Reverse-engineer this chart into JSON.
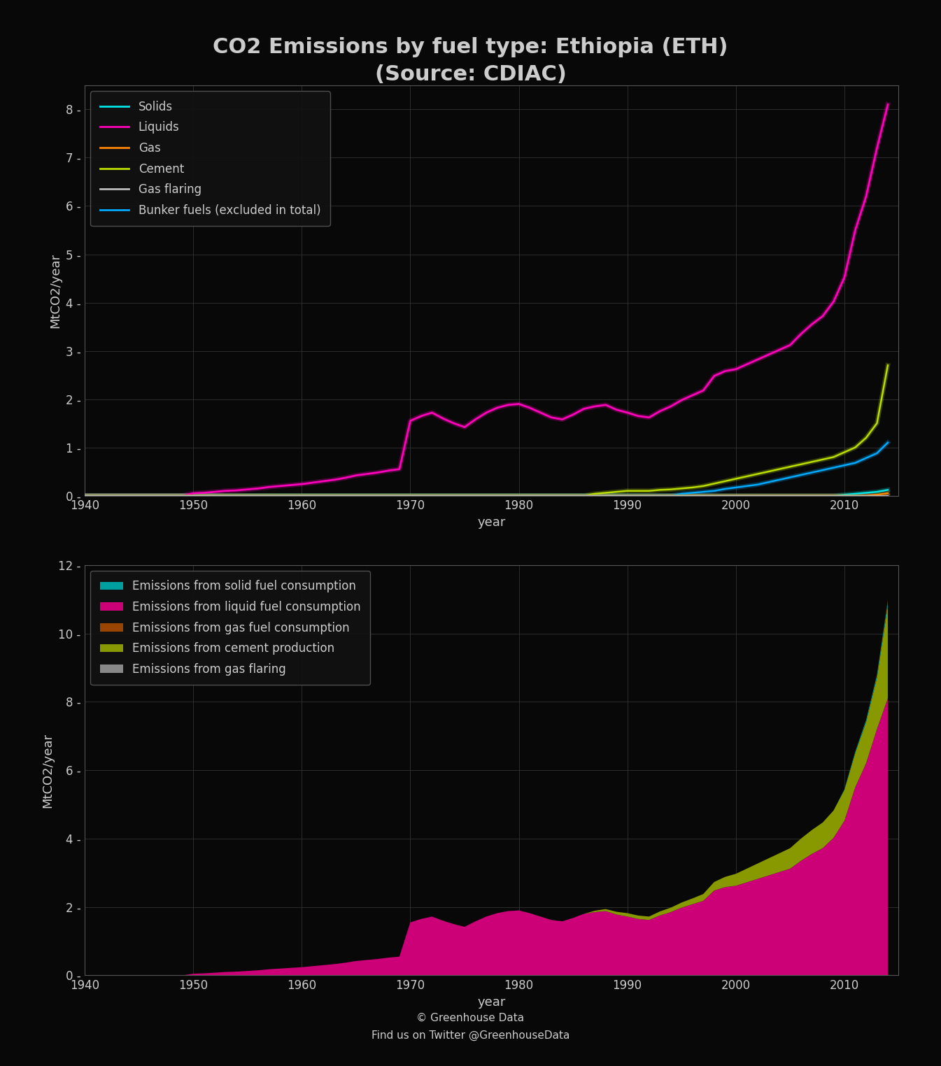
{
  "title": "CO2 Emissions by fuel type: Ethiopia (ETH)\n(Source: CDIAC)",
  "bg_color": "#080808",
  "text_color": "#cccccc",
  "grid_color": "#333333",
  "years": [
    1940,
    1941,
    1942,
    1943,
    1944,
    1945,
    1946,
    1947,
    1948,
    1949,
    1950,
    1951,
    1952,
    1953,
    1954,
    1955,
    1956,
    1957,
    1958,
    1959,
    1960,
    1961,
    1962,
    1963,
    1964,
    1965,
    1966,
    1967,
    1968,
    1969,
    1970,
    1971,
    1972,
    1973,
    1974,
    1975,
    1976,
    1977,
    1978,
    1979,
    1980,
    1981,
    1982,
    1983,
    1984,
    1985,
    1986,
    1987,
    1988,
    1989,
    1990,
    1991,
    1992,
    1993,
    1994,
    1995,
    1996,
    1997,
    1998,
    1999,
    2000,
    2001,
    2002,
    2003,
    2004,
    2005,
    2006,
    2007,
    2008,
    2009,
    2010,
    2011,
    2012,
    2013,
    2014
  ],
  "liquids": [
    0.0,
    0.0,
    0.0,
    0.0,
    0.0,
    0.0,
    0.0,
    0.0,
    0.0,
    0.0,
    0.05,
    0.06,
    0.08,
    0.1,
    0.11,
    0.13,
    0.15,
    0.18,
    0.2,
    0.22,
    0.24,
    0.27,
    0.3,
    0.33,
    0.37,
    0.42,
    0.45,
    0.48,
    0.52,
    0.55,
    1.55,
    1.65,
    1.72,
    1.6,
    1.5,
    1.42,
    1.58,
    1.72,
    1.82,
    1.88,
    1.9,
    1.82,
    1.72,
    1.62,
    1.58,
    1.68,
    1.8,
    1.85,
    1.88,
    1.78,
    1.72,
    1.65,
    1.62,
    1.75,
    1.85,
    1.98,
    2.08,
    2.18,
    2.48,
    2.58,
    2.62,
    2.72,
    2.82,
    2.92,
    3.02,
    3.12,
    3.35,
    3.55,
    3.72,
    4.02,
    4.52,
    5.5,
    6.2,
    7.2,
    8.1
  ],
  "solids": [
    0.0,
    0.0,
    0.0,
    0.0,
    0.0,
    0.0,
    0.0,
    0.0,
    0.0,
    0.0,
    0.0,
    0.0,
    0.0,
    0.0,
    0.0,
    0.0,
    0.0,
    0.0,
    0.0,
    0.0,
    0.0,
    0.0,
    0.0,
    0.0,
    0.0,
    0.0,
    0.0,
    0.0,
    0.0,
    0.0,
    0.0,
    0.0,
    0.0,
    0.0,
    0.0,
    0.0,
    0.0,
    0.0,
    0.0,
    0.0,
    0.0,
    0.0,
    0.0,
    0.0,
    0.0,
    0.0,
    0.0,
    0.0,
    0.0,
    0.0,
    0.0,
    0.0,
    0.0,
    0.0,
    0.0,
    0.0,
    0.0,
    0.0,
    0.0,
    0.0,
    0.0,
    0.0,
    0.0,
    0.0,
    0.0,
    0.0,
    0.0,
    0.0,
    0.0,
    0.0,
    0.02,
    0.04,
    0.06,
    0.08,
    0.12
  ],
  "gas": [
    0.0,
    0.0,
    0.0,
    0.0,
    0.0,
    0.0,
    0.0,
    0.0,
    0.0,
    0.0,
    0.0,
    0.0,
    0.0,
    0.0,
    0.0,
    0.0,
    0.0,
    0.0,
    0.0,
    0.0,
    0.0,
    0.0,
    0.0,
    0.0,
    0.0,
    0.0,
    0.0,
    0.0,
    0.0,
    0.0,
    0.0,
    0.0,
    0.0,
    0.0,
    0.0,
    0.0,
    0.0,
    0.0,
    0.0,
    0.0,
    0.0,
    0.0,
    0.0,
    0.0,
    0.0,
    0.0,
    0.0,
    0.0,
    0.0,
    0.0,
    0.0,
    0.0,
    0.0,
    0.0,
    0.0,
    0.0,
    0.0,
    0.0,
    0.0,
    0.0,
    0.0,
    0.0,
    0.0,
    0.0,
    0.0,
    0.0,
    0.0,
    0.0,
    0.0,
    0.0,
    0.0,
    0.0,
    0.0,
    0.02,
    0.05
  ],
  "cement": [
    0.0,
    0.0,
    0.0,
    0.0,
    0.0,
    0.0,
    0.0,
    0.0,
    0.0,
    0.0,
    0.0,
    0.0,
    0.0,
    0.0,
    0.0,
    0.0,
    0.0,
    0.0,
    0.0,
    0.0,
    0.0,
    0.0,
    0.0,
    0.0,
    0.0,
    0.0,
    0.0,
    0.0,
    0.0,
    0.0,
    0.0,
    0.0,
    0.0,
    0.0,
    0.0,
    0.0,
    0.0,
    0.0,
    0.0,
    0.0,
    0.0,
    0.0,
    0.0,
    0.0,
    0.0,
    0.0,
    0.0,
    0.04,
    0.06,
    0.08,
    0.1,
    0.1,
    0.1,
    0.12,
    0.13,
    0.15,
    0.17,
    0.2,
    0.25,
    0.3,
    0.35,
    0.4,
    0.45,
    0.5,
    0.55,
    0.6,
    0.65,
    0.7,
    0.75,
    0.8,
    0.9,
    1.0,
    1.2,
    1.5,
    2.7
  ],
  "gas_flaring": [
    0.0,
    0.0,
    0.0,
    0.0,
    0.0,
    0.0,
    0.0,
    0.0,
    0.0,
    0.0,
    0.0,
    0.0,
    0.0,
    0.0,
    0.0,
    0.0,
    0.0,
    0.0,
    0.0,
    0.0,
    0.0,
    0.0,
    0.0,
    0.0,
    0.0,
    0.0,
    0.0,
    0.0,
    0.0,
    0.0,
    0.0,
    0.0,
    0.0,
    0.0,
    0.0,
    0.0,
    0.0,
    0.0,
    0.0,
    0.0,
    0.0,
    0.0,
    0.0,
    0.0,
    0.0,
    0.0,
    0.0,
    0.0,
    0.0,
    0.0,
    0.0,
    0.0,
    0.0,
    0.0,
    0.0,
    0.0,
    0.0,
    0.0,
    0.0,
    0.0,
    0.0,
    0.0,
    0.0,
    0.0,
    0.0,
    0.0,
    0.0,
    0.0,
    0.0,
    0.0,
    0.0,
    0.0,
    0.0,
    0.0,
    0.0
  ],
  "bunker_fuels": [
    0.0,
    0.0,
    0.0,
    0.0,
    0.0,
    0.0,
    0.0,
    0.0,
    0.0,
    0.0,
    0.0,
    0.0,
    0.0,
    0.0,
    0.0,
    0.0,
    0.0,
    0.0,
    0.0,
    0.0,
    0.0,
    0.0,
    0.0,
    0.0,
    0.0,
    0.0,
    0.0,
    0.0,
    0.0,
    0.0,
    0.0,
    0.0,
    0.0,
    0.0,
    0.0,
    0.0,
    0.0,
    0.0,
    0.0,
    0.0,
    0.0,
    0.0,
    0.0,
    0.0,
    0.0,
    0.0,
    0.0,
    0.0,
    0.0,
    0.0,
    0.0,
    0.0,
    0.0,
    0.0,
    0.0,
    0.04,
    0.06,
    0.08,
    0.1,
    0.14,
    0.17,
    0.2,
    0.23,
    0.28,
    0.33,
    0.38,
    0.43,
    0.48,
    0.53,
    0.58,
    0.63,
    0.68,
    0.78,
    0.88,
    1.1
  ],
  "line_colors": {
    "solids": "#00e5e5",
    "liquids": "#ff00bb",
    "gas": "#ff8800",
    "cement": "#bbdd00",
    "gas_flaring": "#bbbbbb",
    "bunker_fuels": "#00aaff"
  },
  "area_colors": {
    "solids": "#00a0a0",
    "liquids": "#cc0077",
    "gas": "#994400",
    "cement": "#889900",
    "gas_flaring": "#888888"
  },
  "xlabel": "year",
  "ylabel": "MtCO2/year",
  "footer1": "© Greenhouse Data",
  "footer2": "Find us on Twitter @GreenhouseData"
}
